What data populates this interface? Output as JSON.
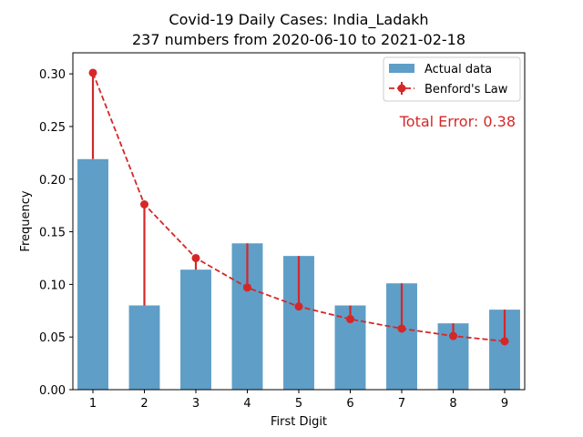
{
  "chart_data": {
    "type": "bar",
    "title": "Covid-19 Daily Cases: India_Ladakh",
    "subtitle": "237 numbers from 2020-06-10 to 2021-02-18",
    "xlabel": "First Digit",
    "ylabel": "Frequency",
    "categories": [
      "1",
      "2",
      "3",
      "4",
      "5",
      "6",
      "7",
      "8",
      "9"
    ],
    "ylim": [
      0,
      0.32
    ],
    "yticks": [
      "0.00",
      "0.05",
      "0.10",
      "0.15",
      "0.20",
      "0.25",
      "0.30"
    ],
    "yticks_values": [
      0,
      0.05,
      0.1,
      0.15,
      0.2,
      0.25,
      0.3
    ],
    "series": [
      {
        "name": "Actual data",
        "kind": "bar",
        "color": "#5f9ec7",
        "values": [
          0.219,
          0.08,
          0.114,
          0.139,
          0.127,
          0.08,
          0.101,
          0.063,
          0.076
        ]
      },
      {
        "name": "Benford's Law",
        "kind": "line",
        "color": "#d62728",
        "values": [
          0.301,
          0.176,
          0.125,
          0.097,
          0.079,
          0.067,
          0.058,
          0.051,
          0.046
        ]
      }
    ],
    "annotation": "Total Error: 0.38",
    "annotation_color": "#d62728",
    "legend_placement": "top-right",
    "grid": false
  }
}
